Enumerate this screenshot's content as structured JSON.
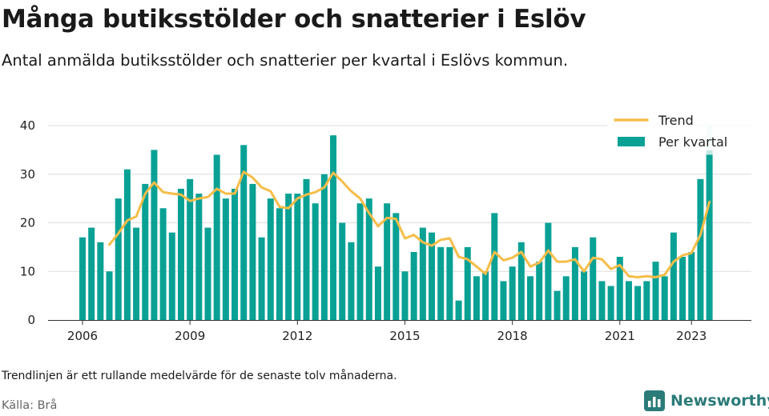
{
  "title": "Många butiksstölder och snatterier i Eslöv",
  "subtitle": "Antal anmälda butiksstölder och snatterier per kvartal i Eslövs kommun.",
  "note": "Trendlinjen är ett rullande medelvärde för de senaste tolv månaderna.",
  "source": "Källa: Brå",
  "brand": "Newsworthy",
  "colors": {
    "bar": "#0aa195",
    "bar_light": "#c4e6e3",
    "trend": "#f5bd49",
    "brand": "#2b7b78",
    "grid": "#dddddd"
  },
  "chart_data": {
    "type": "bar",
    "xlabel": "",
    "ylabel": "",
    "ylim": [
      0,
      40
    ],
    "yticks": [
      0,
      10,
      20,
      30,
      40
    ],
    "grid": true,
    "legend_position": "top-right",
    "x_start": "2006 Q1",
    "xticks": [
      {
        "label": "2006",
        "index": 0
      },
      {
        "label": "2009",
        "index": 12
      },
      {
        "label": "2012",
        "index": 24
      },
      {
        "label": "2015",
        "index": 36
      },
      {
        "label": "2018",
        "index": 48
      },
      {
        "label": "2021",
        "index": 60
      },
      {
        "label": "2023",
        "index": 68
      }
    ],
    "series": [
      {
        "name": "Per kvartal",
        "type": "bar",
        "values": [
          17,
          19,
          16,
          10,
          25,
          31,
          19,
          28,
          35,
          23,
          18,
          27,
          29,
          26,
          19,
          34,
          25,
          27,
          36,
          28,
          17,
          25,
          23,
          26,
          26,
          29,
          24,
          30,
          38,
          20,
          16,
          24,
          25,
          11,
          24,
          22,
          10,
          14,
          19,
          18,
          15,
          15,
          4,
          15,
          9,
          10,
          22,
          8,
          11,
          16,
          9,
          12,
          20,
          6,
          9,
          15,
          10,
          17,
          8,
          7,
          13,
          8,
          7,
          8,
          12,
          9,
          18,
          13,
          14,
          29,
          40
        ],
        "light_top_last": 34
      },
      {
        "name": "Trend",
        "type": "line",
        "start_index": 3,
        "values": [
          15.5,
          17.8,
          20.5,
          21.3,
          26.0,
          28.3,
          26.3,
          26.0,
          25.8,
          24.5,
          25.0,
          25.3,
          27.0,
          26.0,
          26.0,
          30.5,
          29.3,
          27.3,
          26.5,
          23.3,
          23.0,
          25.0,
          25.8,
          26.3,
          27.3,
          30.3,
          28.5,
          26.5,
          25.0,
          22.0,
          19.3,
          21.0,
          20.8,
          16.8,
          17.5,
          16.0,
          15.3,
          16.5,
          16.8,
          13.0,
          12.5,
          11.0,
          9.5,
          14.0,
          12.3,
          12.8,
          14.0,
          11.0,
          11.8,
          14.3,
          12.0,
          12.0,
          12.5,
          10.0,
          12.8,
          12.5,
          10.5,
          11.3,
          9.0,
          8.8,
          9.0,
          8.8,
          9.3,
          12.0,
          13.3,
          13.8,
          17.5,
          24.3
        ]
      }
    ]
  }
}
